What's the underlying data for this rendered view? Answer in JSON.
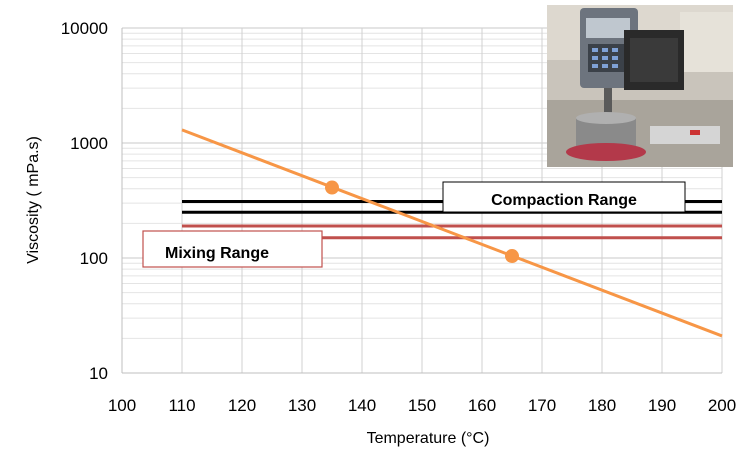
{
  "chart_data": {
    "type": "line",
    "title": "",
    "xlabel": "Temperature (°C)",
    "ylabel": "Viscosity ( mPa.s)",
    "xlim": [
      100,
      200
    ],
    "ylim": [
      10,
      10000
    ],
    "yscale": "log",
    "xticks": [
      "100",
      "110",
      "120",
      "130",
      "140",
      "150",
      "160",
      "170",
      "180",
      "190",
      "200"
    ],
    "yticks": [
      "10",
      "100",
      "1000",
      "10000"
    ],
    "grid": true,
    "series": [
      {
        "x": [
          110,
          200
        ],
        "y": [
          1300,
          21
        ],
        "color": "#f79646",
        "markers": [
          {
            "x": 135,
            "y": 410
          },
          {
            "x": 165,
            "y": 104
          }
        ]
      }
    ],
    "ranges": [
      {
        "label": "Compaction Range",
        "y_low": 250,
        "y_high": 310,
        "x_from": 110,
        "x_to": 200,
        "color": "#000000"
      },
      {
        "label": "Mixing Range",
        "y_low": 150,
        "y_high": 190,
        "x_from": 110,
        "x_to": 200,
        "color": "#c0504d"
      }
    ],
    "inset_image": "photo of rotational viscometer laboratory apparatus"
  }
}
